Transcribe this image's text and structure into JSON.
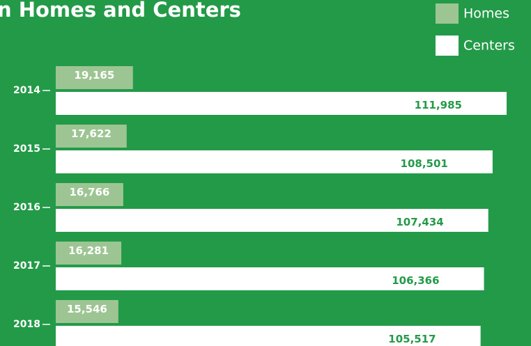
{
  "chart_data": {
    "type": "bar",
    "orientation": "horizontal",
    "title": "n Homes and Centers",
    "categories": [
      "2014",
      "2015",
      "2016",
      "2017",
      "2018"
    ],
    "series": [
      {
        "name": "Homes",
        "color": "#9dc593",
        "values": [
          19165,
          17622,
          16766,
          16281,
          15546
        ],
        "value_labels": [
          "19,165",
          "17,622",
          "16,766",
          "16,281",
          "15,546"
        ]
      },
      {
        "name": "Centers",
        "color": "#ffffff",
        "values": [
          111985,
          108501,
          107434,
          106366,
          105517
        ],
        "value_labels": [
          "111,985",
          "108,501",
          "107,434",
          "106,366",
          "105,517"
        ]
      }
    ]
  }
}
